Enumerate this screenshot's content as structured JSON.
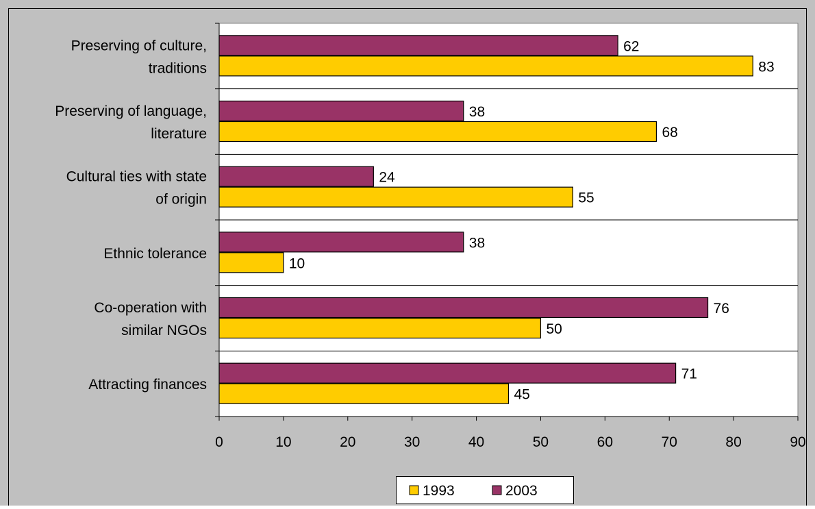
{
  "chart_data": {
    "type": "bar",
    "orientation": "horizontal",
    "categories": [
      [
        "Preserving of culture,",
        "traditions"
      ],
      [
        "Preserving of language,",
        "literature"
      ],
      [
        "Cultural ties with state",
        "of origin"
      ],
      [
        "Ethnic tolerance"
      ],
      [
        "Co-operation with",
        "similar NGOs"
      ],
      [
        "Attracting finances"
      ]
    ],
    "series": [
      {
        "name": "2003",
        "values": [
          62,
          38,
          24,
          38,
          76,
          71
        ],
        "color": "#993366"
      },
      {
        "name": "1993",
        "values": [
          83,
          68,
          55,
          10,
          50,
          45
        ],
        "color": "#FFCC00"
      }
    ],
    "xlim": [
      0,
      90
    ],
    "xticks": [
      0,
      10,
      20,
      30,
      40,
      50,
      60,
      70,
      80,
      90
    ],
    "legend_order": [
      "1993",
      "2003"
    ],
    "legend_position": "bottom",
    "grid": "horizontal separators between categories",
    "plot_background": "#ffffff",
    "chart_background": "#c0c0c0"
  }
}
